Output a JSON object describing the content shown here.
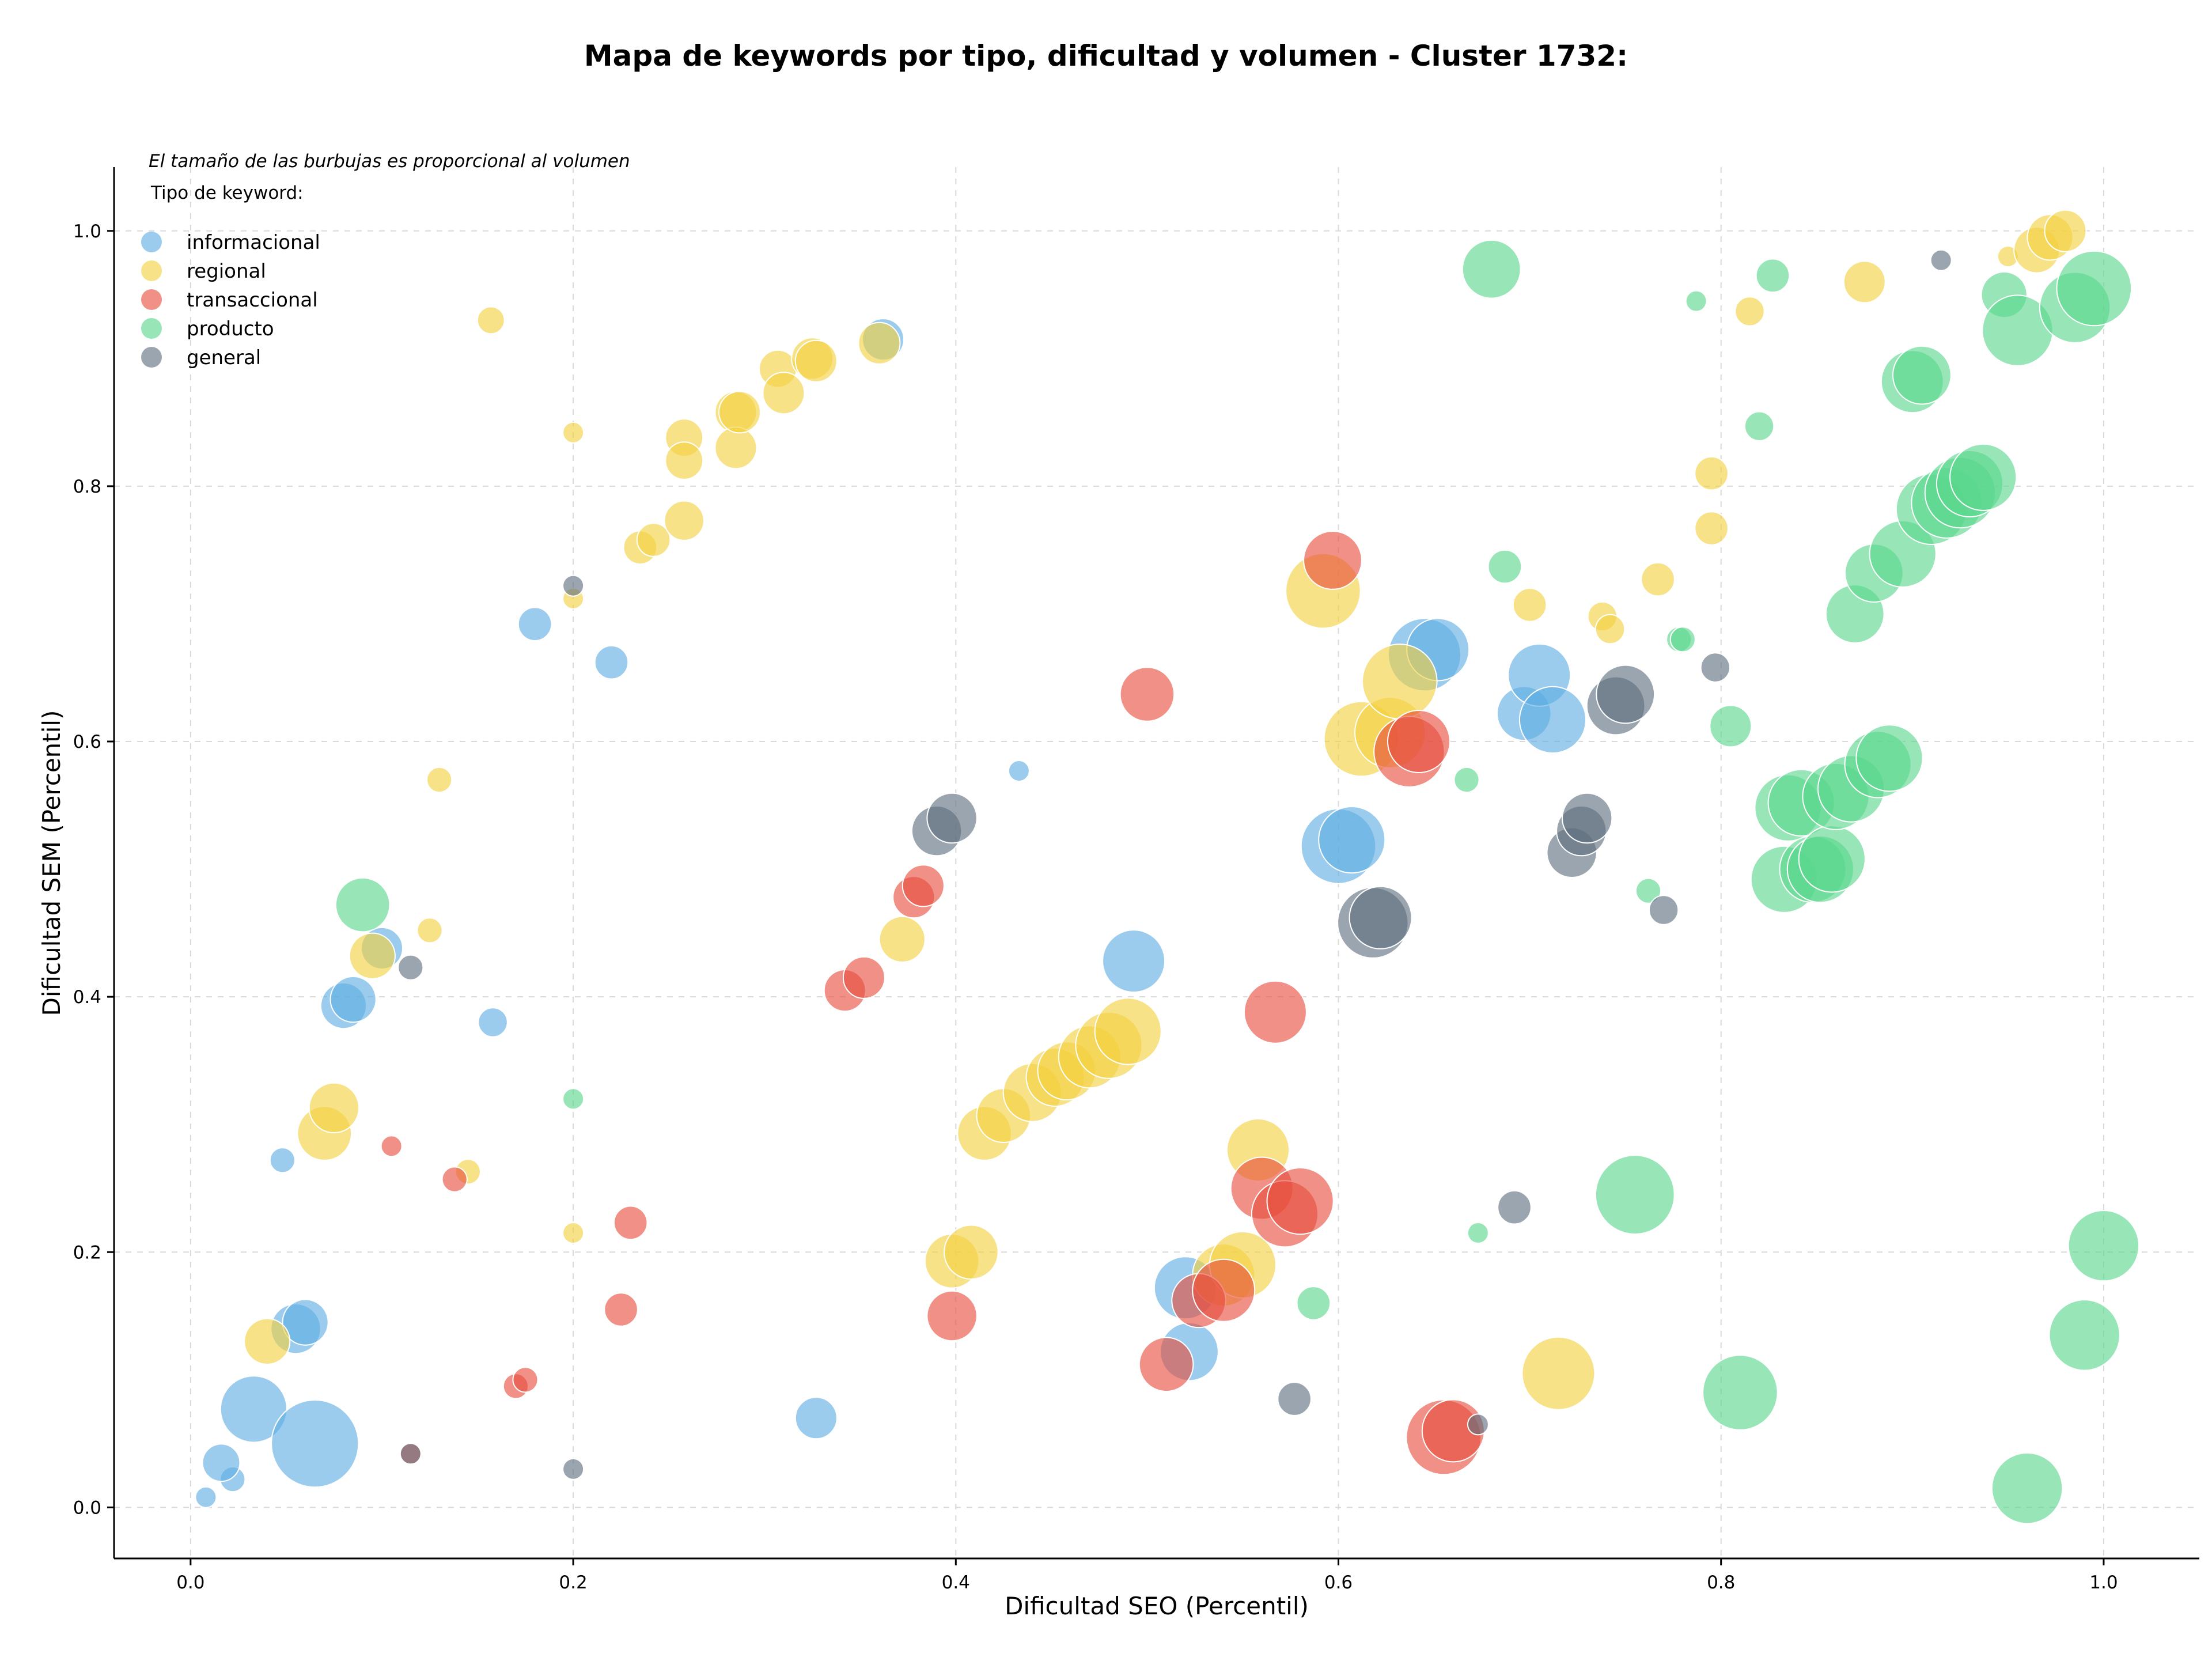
{
  "chart_data": {
    "type": "scatter",
    "title": "Mapa de keywords por tipo, dificultad y volumen - Cluster 1732:",
    "xlabel": "Dificultad SEO (Percentil)",
    "ylabel": "Dificultad SEM (Percentil)",
    "xlim": [
      -0.04,
      1.05
    ],
    "ylim": [
      -0.04,
      1.05
    ],
    "xticks": [
      "0.0",
      "0.2",
      "0.4",
      "0.6",
      "0.8",
      "1.0"
    ],
    "yticks": [
      "0.0",
      "0.2",
      "0.4",
      "0.6",
      "0.8",
      "1.0"
    ],
    "grid": true,
    "legend_position": "top-left",
    "note": "El tamaño de las burbujas es proporcional al volumen",
    "legend_title": "Tipo de keyword:",
    "series": [
      {
        "name": "informacional",
        "color": "#5DADE2",
        "points": [
          [
            0.008,
            0.008,
            1
          ],
          [
            0.022,
            0.022,
            1.2
          ],
          [
            0.016,
            0.035,
            1.8
          ],
          [
            0.033,
            0.077,
            3.2
          ],
          [
            0.065,
            0.05,
            4.2
          ],
          [
            0.055,
            0.14,
            2.4
          ],
          [
            0.06,
            0.145,
            2.2
          ],
          [
            0.048,
            0.272,
            1.2
          ],
          [
            0.08,
            0.393,
            2.2
          ],
          [
            0.085,
            0.398,
            2.2
          ],
          [
            0.1,
            0.438,
            2
          ],
          [
            0.158,
            0.38,
            1.4
          ],
          [
            0.18,
            0.692,
            1.6
          ],
          [
            0.22,
            0.662,
            1.6
          ],
          [
            0.327,
            0.07,
            2
          ],
          [
            0.362,
            0.915,
            2
          ],
          [
            0.433,
            0.577,
            1
          ],
          [
            0.493,
            0.428,
            3
          ],
          [
            0.52,
            0.172,
            3
          ],
          [
            0.522,
            0.122,
            2.8
          ],
          [
            0.6,
            0.518,
            3.6
          ],
          [
            0.607,
            0.523,
            3.2
          ],
          [
            0.645,
            0.668,
            3.5
          ],
          [
            0.652,
            0.672,
            3
          ],
          [
            0.697,
            0.622,
            2.6
          ],
          [
            0.705,
            0.652,
            3
          ],
          [
            0.712,
            0.617,
            3.2
          ]
        ]
      },
      {
        "name": "regional",
        "color": "#F4D03F",
        "points": [
          [
            0.04,
            0.13,
            2.2
          ],
          [
            0.07,
            0.293,
            2.6
          ],
          [
            0.075,
            0.313,
            2.4
          ],
          [
            0.095,
            0.432,
            2.2
          ],
          [
            0.125,
            0.452,
            1.2
          ],
          [
            0.13,
            0.57,
            1.2
          ],
          [
            0.145,
            0.263,
            1.2
          ],
          [
            0.157,
            0.93,
            1.3
          ],
          [
            0.2,
            0.842,
            1
          ],
          [
            0.2,
            0.712,
            1
          ],
          [
            0.2,
            0.215,
            1
          ],
          [
            0.235,
            0.752,
            1.6
          ],
          [
            0.242,
            0.758,
            1.6
          ],
          [
            0.258,
            0.838,
            1.8
          ],
          [
            0.258,
            0.82,
            1.8
          ],
          [
            0.258,
            0.773,
            1.9
          ],
          [
            0.285,
            0.858,
            2
          ],
          [
            0.285,
            0.83,
            2
          ],
          [
            0.287,
            0.858,
            2
          ],
          [
            0.307,
            0.892,
            1.8
          ],
          [
            0.31,
            0.873,
            2
          ],
          [
            0.325,
            0.9,
            2
          ],
          [
            0.327,
            0.898,
            2
          ],
          [
            0.36,
            0.912,
            2
          ],
          [
            0.372,
            0.445,
            2.2
          ],
          [
            0.398,
            0.193,
            2.6
          ],
          [
            0.408,
            0.2,
            2.6
          ],
          [
            0.415,
            0.293,
            2.6
          ],
          [
            0.425,
            0.307,
            2.6
          ],
          [
            0.44,
            0.325,
            2.8
          ],
          [
            0.452,
            0.337,
            2.8
          ],
          [
            0.458,
            0.342,
            2.8
          ],
          [
            0.47,
            0.353,
            3
          ],
          [
            0.48,
            0.362,
            3.2
          ],
          [
            0.49,
            0.373,
            3.2
          ],
          [
            0.54,
            0.182,
            3
          ],
          [
            0.55,
            0.19,
            3.2
          ],
          [
            0.558,
            0.28,
            3
          ],
          [
            0.592,
            0.718,
            3.6
          ],
          [
            0.612,
            0.602,
            3.6
          ],
          [
            0.627,
            0.607,
            3.4
          ],
          [
            0.632,
            0.647,
            3.6
          ],
          [
            0.7,
            0.707,
            1.6
          ],
          [
            0.715,
            0.105,
            3.5
          ],
          [
            0.738,
            0.698,
            1.4
          ],
          [
            0.742,
            0.688,
            1.4
          ],
          [
            0.767,
            0.727,
            1.6
          ],
          [
            0.795,
            0.81,
            1.6
          ],
          [
            0.795,
            0.767,
            1.6
          ],
          [
            0.815,
            0.937,
            1.4
          ],
          [
            0.875,
            0.96,
            2
          ],
          [
            0.95,
            0.98,
            1
          ],
          [
            0.965,
            0.985,
            2.2
          ],
          [
            0.972,
            0.995,
            2.2
          ],
          [
            0.98,
            1.0,
            2
          ]
        ]
      },
      {
        "name": "transaccional",
        "color": "#E74C3C",
        "points": [
          [
            0.105,
            0.283,
            1
          ],
          [
            0.115,
            0.042,
            1
          ],
          [
            0.138,
            0.257,
            1.2
          ],
          [
            0.17,
            0.095,
            1.2
          ],
          [
            0.175,
            0.1,
            1.2
          ],
          [
            0.225,
            0.155,
            1.6
          ],
          [
            0.23,
            0.223,
            1.6
          ],
          [
            0.342,
            0.405,
            2
          ],
          [
            0.352,
            0.415,
            2
          ],
          [
            0.378,
            0.478,
            2
          ],
          [
            0.383,
            0.487,
            2
          ],
          [
            0.398,
            0.15,
            2.4
          ],
          [
            0.5,
            0.637,
            2.6
          ],
          [
            0.51,
            0.112,
            2.6
          ],
          [
            0.527,
            0.162,
            2.6
          ],
          [
            0.54,
            0.17,
            3
          ],
          [
            0.56,
            0.25,
            3
          ],
          [
            0.567,
            0.388,
            3
          ],
          [
            0.572,
            0.23,
            3.2
          ],
          [
            0.58,
            0.24,
            3.2
          ],
          [
            0.597,
            0.742,
            2.8
          ],
          [
            0.637,
            0.592,
            3.4
          ],
          [
            0.642,
            0.6,
            3
          ],
          [
            0.655,
            0.055,
            3.6
          ],
          [
            0.66,
            0.06,
            3
          ]
        ]
      },
      {
        "name": "producto",
        "color": "#58D68D",
        "points": [
          [
            0.09,
            0.472,
            2.6
          ],
          [
            0.2,
            0.32,
            1
          ],
          [
            0.587,
            0.16,
            1.6
          ],
          [
            0.667,
            0.57,
            1.2
          ],
          [
            0.673,
            0.215,
            1
          ],
          [
            0.68,
            0.97,
            2.8
          ],
          [
            0.687,
            0.737,
            1.6
          ],
          [
            0.755,
            0.245,
            3.8
          ],
          [
            0.762,
            0.483,
            1.2
          ],
          [
            0.778,
            0.68,
            1.2
          ],
          [
            0.78,
            0.68,
            1.2
          ],
          [
            0.787,
            0.945,
            1
          ],
          [
            0.805,
            0.612,
            2
          ],
          [
            0.81,
            0.09,
            3.6
          ],
          [
            0.82,
            0.847,
            1.4
          ],
          [
            0.827,
            0.965,
            1.6
          ],
          [
            0.833,
            0.492,
            3.2
          ],
          [
            0.835,
            0.548,
            3.2
          ],
          [
            0.842,
            0.552,
            3.2
          ],
          [
            0.848,
            0.5,
            3.2
          ],
          [
            0.852,
            0.5,
            3.2
          ],
          [
            0.858,
            0.508,
            3.2
          ],
          [
            0.86,
            0.557,
            3.2
          ],
          [
            0.868,
            0.563,
            3.2
          ],
          [
            0.87,
            0.7,
            2.8
          ],
          [
            0.88,
            0.732,
            2.8
          ],
          [
            0.882,
            0.582,
            3.2
          ],
          [
            0.888,
            0.587,
            3.2
          ],
          [
            0.895,
            0.747,
            3.2
          ],
          [
            0.9,
            0.882,
            3
          ],
          [
            0.905,
            0.887,
            2.8
          ],
          [
            0.91,
            0.782,
            3.4
          ],
          [
            0.918,
            0.787,
            3.4
          ],
          [
            0.925,
            0.795,
            3.4
          ],
          [
            0.93,
            0.802,
            3.2
          ],
          [
            0.937,
            0.807,
            3.2
          ],
          [
            0.948,
            0.95,
            2.2
          ],
          [
            0.955,
            0.922,
            3.4
          ],
          [
            0.96,
            0.015,
            3.4
          ],
          [
            0.985,
            0.94,
            3.4
          ],
          [
            0.99,
            0.135,
            3.4
          ],
          [
            0.995,
            0.955,
            3.6
          ],
          [
            1.0,
            0.205,
            3.4
          ]
        ]
      },
      {
        "name": "general",
        "color": "#5D6D7E",
        "points": [
          [
            0.115,
            0.042,
            1
          ],
          [
            0.115,
            0.423,
            1.2
          ],
          [
            0.2,
            0.722,
            1
          ],
          [
            0.2,
            0.03,
            1
          ],
          [
            0.39,
            0.53,
            2.4
          ],
          [
            0.398,
            0.54,
            2.4
          ],
          [
            0.577,
            0.085,
            1.6
          ],
          [
            0.618,
            0.458,
            3.4
          ],
          [
            0.622,
            0.462,
            3
          ],
          [
            0.673,
            0.065,
            1
          ],
          [
            0.692,
            0.235,
            1.6
          ],
          [
            0.722,
            0.513,
            2.4
          ],
          [
            0.727,
            0.53,
            2.4
          ],
          [
            0.73,
            0.54,
            2.4
          ],
          [
            0.745,
            0.628,
            2.8
          ],
          [
            0.75,
            0.637,
            2.8
          ],
          [
            0.77,
            0.468,
            1.4
          ],
          [
            0.797,
            0.658,
            1.4
          ],
          [
            0.915,
            0.977,
            1
          ]
        ]
      }
    ]
  }
}
